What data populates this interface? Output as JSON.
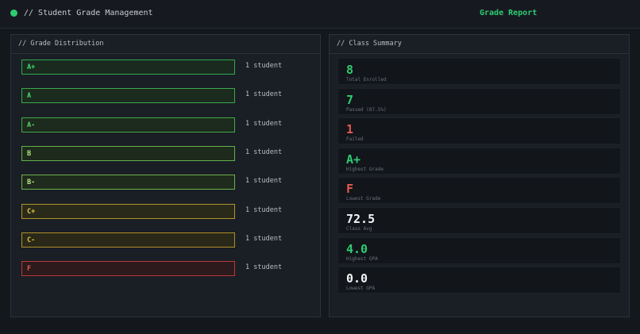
{
  "header": {
    "title": "// Student Grade Management",
    "link_label": "Grade Report",
    "status_color": "#2ecc71",
    "link_color": "#2ecc71"
  },
  "distribution": {
    "title": "// Grade Distribution",
    "grades": [
      {
        "grade": "A+",
        "count": 1,
        "count_label": "1 student",
        "border": "#2fa84f",
        "fill": "#1a2a1f",
        "text": "#3ddc6b"
      },
      {
        "grade": "A",
        "count": 1,
        "count_label": "1 student",
        "border": "#3aa84a",
        "fill": "#1b2b1e",
        "text": "#4cd96a"
      },
      {
        "grade": "A-",
        "count": 1,
        "count_label": "1 student",
        "border": "#45a845",
        "fill": "#1c2b1d",
        "text": "#5ad36a"
      },
      {
        "grade": "B",
        "count": 1,
        "count_label": "1 student",
        "border": "#62b04a",
        "fill": "#1e2b1c",
        "text": "#a8e27a"
      },
      {
        "grade": "B-",
        "count": 1,
        "count_label": "1 student",
        "border": "#6bb04e",
        "fill": "#1f2b1c",
        "text": "#b6e486"
      },
      {
        "grade": "C+",
        "count": 1,
        "count_label": "1 student",
        "border": "#b0922e",
        "fill": "#2a2a1a",
        "text": "#e7c84a"
      },
      {
        "grade": "C-",
        "count": 1,
        "count_label": "1 student",
        "border": "#b0902a",
        "fill": "#2a2919",
        "text": "#e2c244"
      },
      {
        "grade": "F",
        "count": 1,
        "count_label": "1 student",
        "border": "#b83a3a",
        "fill": "#2c1a1c",
        "text": "#e25a4f"
      }
    ]
  },
  "summary": {
    "title": "// Class Summary",
    "cards": [
      {
        "value": "8",
        "label": "Total Enrolled",
        "color": "#2ecc71"
      },
      {
        "value": "7",
        "label": "Passed (87.5%)",
        "color": "#2ecc71"
      },
      {
        "value": "1",
        "label": "Failed",
        "color": "#e25a4f"
      },
      {
        "value": "A+",
        "label": "Highest Grade",
        "color": "#2ecc71"
      },
      {
        "value": "F",
        "label": "Lowest Grade",
        "color": "#e25a4f"
      },
      {
        "value": "72.5",
        "label": "Class Avg",
        "color": "#f2f4f6"
      },
      {
        "value": "4.0",
        "label": "Highest GPA",
        "color": "#2ecc71"
      },
      {
        "value": "0.0",
        "label": "Lowest GPA",
        "color": "#f2f4f6"
      }
    ]
  }
}
